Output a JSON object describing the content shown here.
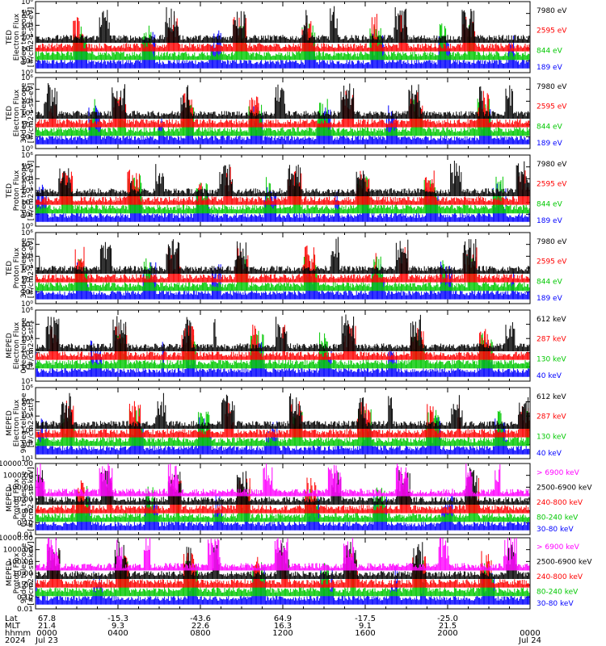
{
  "chart_data": {
    "type": "line",
    "panels": [
      {
        "ylabel_lines": [
          "TED",
          "Electron Flux",
          "0deg telescope",
          "[#/cm2-s-str-eV]"
        ],
        "yscale": "log",
        "ylim": [
          1,
          1000000
        ],
        "yticks": [
          "10⁰",
          "10¹",
          "10²",
          "10³",
          "10⁴",
          "10⁵",
          "10⁶"
        ],
        "series": [
          {
            "name": "7980 eV",
            "color": "#000000"
          },
          {
            "name": "2595 eV",
            "color": "#ff0000"
          },
          {
            "name": "844 eV",
            "color": "#00c800"
          },
          {
            "name": "189 eV",
            "color": "#0000ff"
          }
        ]
      },
      {
        "ylabel_lines": [
          "TED",
          "Electron Flux",
          "30deg telescope",
          "[#/cm2-s-str-eV]"
        ],
        "yscale": "log",
        "ylim": [
          1,
          1000000
        ],
        "yticks": [
          "10⁰",
          "10¹",
          "10²",
          "10³",
          "10⁴",
          "10⁵",
          "10⁶"
        ],
        "series": [
          {
            "name": "7980 eV",
            "color": "#000000"
          },
          {
            "name": "2595 eV",
            "color": "#ff0000"
          },
          {
            "name": "844 eV",
            "color": "#00c800"
          },
          {
            "name": "189 eV",
            "color": "#0000ff"
          }
        ]
      },
      {
        "ylabel_lines": [
          "TED",
          "Proton Flux",
          "0deg telescope",
          "[#/cm2-s-str-eV]"
        ],
        "yscale": "log",
        "ylim": [
          1,
          1000000
        ],
        "yticks": [
          "10⁰",
          "10¹",
          "10²",
          "10³",
          "10⁴",
          "10⁵",
          "10⁶"
        ],
        "series": [
          {
            "name": "7980 eV",
            "color": "#000000"
          },
          {
            "name": "2595 eV",
            "color": "#ff0000"
          },
          {
            "name": "844 eV",
            "color": "#00c800"
          },
          {
            "name": "189 eV",
            "color": "#0000ff"
          }
        ]
      },
      {
        "ylabel_lines": [
          "TED",
          "Proton Flux",
          "30deg telescope",
          "[#/cm2-s-str-eV]"
        ],
        "yscale": "log",
        "ylim": [
          1,
          1000000
        ],
        "yticks": [
          "10⁰",
          "10¹",
          "10²",
          "10³",
          "10⁴",
          "10⁵",
          "10⁶"
        ],
        "series": [
          {
            "name": "7980 eV",
            "color": "#000000"
          },
          {
            "name": "2595 eV",
            "color": "#ff0000"
          },
          {
            "name": "844 eV",
            "color": "#00c800"
          },
          {
            "name": "189 eV",
            "color": "#0000ff"
          }
        ]
      },
      {
        "ylabel_lines": [
          "MEPED",
          "Electron Flux",
          "0deg telescope",
          "[#/cm2-s-str]"
        ],
        "yscale": "log",
        "ylim": [
          10,
          1000000
        ],
        "yticks": [
          "10¹",
          "10²",
          "10³",
          "10⁴",
          "10⁵",
          "10⁶"
        ],
        "series": [
          {
            "name": "612 keV",
            "color": "#000000"
          },
          {
            "name": "287 keV",
            "color": "#ff0000"
          },
          {
            "name": "130 keV",
            "color": "#00c800"
          },
          {
            "name": "40 keV",
            "color": "#0000ff"
          }
        ]
      },
      {
        "ylabel_lines": [
          "MEPED",
          "Electron Flux",
          "90deg telescope",
          "[#/cm2-s-str]"
        ],
        "yscale": "log",
        "ylim": [
          10,
          1000000
        ],
        "yticks": [
          "10¹",
          "10²",
          "10³",
          "10⁴",
          "10⁵",
          "10⁶"
        ],
        "series": [
          {
            "name": "612 keV",
            "color": "#000000"
          },
          {
            "name": "287 keV",
            "color": "#ff0000"
          },
          {
            "name": "130 keV",
            "color": "#00c800"
          },
          {
            "name": "40 keV",
            "color": "#0000ff"
          }
        ]
      },
      {
        "ylabel_lines": [
          "MEPED",
          "Proton Flux",
          "0deg telescope",
          "[#/cm2-s-str-keV]"
        ],
        "yscale": "log",
        "ylim": [
          0.01,
          10000
        ],
        "yticks": [
          "0.01",
          "0.10",
          "1.00",
          "10.00",
          "100.00",
          "1000.00",
          "10000.00"
        ],
        "series": [
          {
            "name": "> 6900 keV",
            "color": "#ff00ff"
          },
          {
            "name": "2500-6900 keV",
            "color": "#000000"
          },
          {
            "name": "240-800 keV",
            "color": "#ff0000"
          },
          {
            "name": "80-240 keV",
            "color": "#00c800"
          },
          {
            "name": "30-80 keV",
            "color": "#0000ff"
          }
        ]
      },
      {
        "ylabel_lines": [
          "MEPED",
          "Proton Flux",
          "90deg telescope",
          "[#/cm2-s-str-keV]"
        ],
        "yscale": "log",
        "ylim": [
          0.01,
          10000
        ],
        "yticks": [
          "0.01",
          "0.10",
          "1.00",
          "10.00",
          "100.00",
          "1000.00",
          "10000.00"
        ],
        "series": [
          {
            "name": "> 6900 keV",
            "color": "#ff00ff"
          },
          {
            "name": "2500-6900 keV",
            "color": "#000000"
          },
          {
            "name": "240-800 keV",
            "color": "#ff0000"
          },
          {
            "name": "80-240 keV",
            "color": "#00c800"
          },
          {
            "name": "30-80 keV",
            "color": "#0000ff"
          }
        ]
      }
    ],
    "x_axis": {
      "row_labels": [
        "Lat",
        "MLT",
        "hhmm",
        "2024"
      ],
      "columns": [
        {
          "lat": "67.8",
          "mlt": "21.4",
          "hhmm": "0000",
          "date": "Jul 23"
        },
        {
          "lat": "-15.3",
          "mlt": "9.3",
          "hhmm": "0400",
          "date": ""
        },
        {
          "lat": "-43.6",
          "mlt": "22.6",
          "hhmm": "0800",
          "date": ""
        },
        {
          "lat": "64.9",
          "mlt": "16.3",
          "hhmm": "1200",
          "date": ""
        },
        {
          "lat": "-17.5",
          "mlt": "9.1",
          "hhmm": "1600",
          "date": ""
        },
        {
          "lat": "-25.0",
          "mlt": "21.5",
          "hhmm": "2000",
          "date": ""
        },
        {
          "lat": "",
          "mlt": "",
          "hhmm": "0000",
          "date": "Jul 24"
        }
      ],
      "range_hours": [
        0,
        24
      ]
    }
  }
}
